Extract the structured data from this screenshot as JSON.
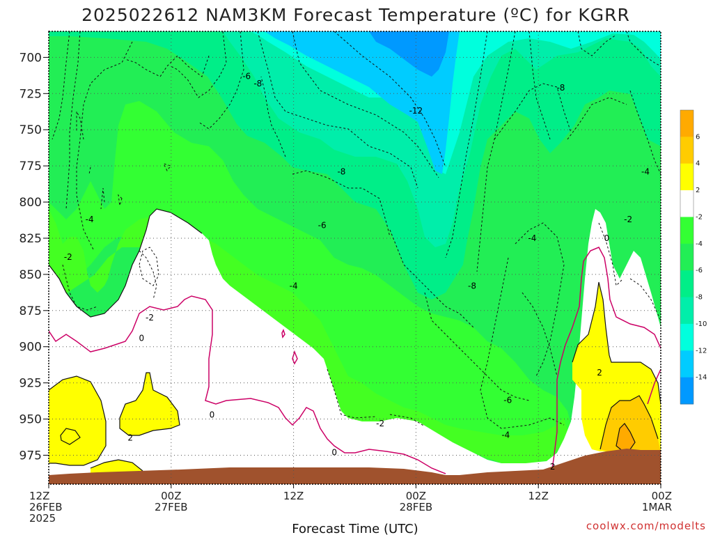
{
  "chart_data": {
    "type": "heatmap",
    "title": "2025022612 NAM3KM Forecast Temperature (ºC) for KGRR",
    "xlabel": "Forecast Time (UTC)",
    "ylabel": "",
    "x_ticks": [
      {
        "hour": 0,
        "lines": [
          "12Z",
          "26FEB",
          "2025"
        ]
      },
      {
        "hour": 12,
        "lines": [
          "00Z",
          "27FEB"
        ]
      },
      {
        "hour": 24,
        "lines": [
          "12Z"
        ]
      },
      {
        "hour": 36,
        "lines": [
          "00Z",
          "28FEB"
        ]
      },
      {
        "hour": 48,
        "lines": [
          "12Z"
        ]
      },
      {
        "hour": 60,
        "lines": [
          "00Z",
          "1MAR"
        ]
      }
    ],
    "xlim": [
      0,
      60
    ],
    "y_ticks": [
      700,
      725,
      750,
      775,
      800,
      825,
      850,
      875,
      900,
      925,
      950,
      975
    ],
    "ylim": [
      682,
      995
    ],
    "y_axis_inverted": true,
    "grid": "dotted",
    "colorbar": {
      "ticks": [
        6,
        4,
        2,
        -2,
        -4,
        -6,
        -8,
        -10,
        -12,
        -14
      ],
      "bands": [
        {
          "range": [
            6,
            8
          ],
          "color": "#ffaa00"
        },
        {
          "range": [
            4,
            6
          ],
          "color": "#ffcc00"
        },
        {
          "range": [
            2,
            4
          ],
          "color": "#ffff00"
        },
        {
          "range": [
            -2,
            2
          ],
          "color": "#ffffff"
        },
        {
          "range": [
            -4,
            -2
          ],
          "color": "#33ff33"
        },
        {
          "range": [
            -6,
            -4
          ],
          "color": "#22ee55"
        },
        {
          "range": [
            -8,
            -6
          ],
          "color": "#00ee88"
        },
        {
          "range": [
            -10,
            -8
          ],
          "color": "#00eeaa"
        },
        {
          "range": [
            -12,
            -10
          ],
          "color": "#00ffdd"
        },
        {
          "range": [
            -14,
            -12
          ],
          "color": "#00ccff"
        },
        {
          "range": [
            -16,
            -14
          ],
          "color": "#0099ff"
        }
      ]
    },
    "contour_labels": [
      {
        "text": "-6",
        "hour": 19.4,
        "pressure": 713
      },
      {
        "text": "-8",
        "hour": 20.5,
        "pressure": 718
      },
      {
        "text": "-12",
        "hour": 36.0,
        "pressure": 737
      },
      {
        "text": "-8",
        "hour": 50.2,
        "pressure": 721
      },
      {
        "text": "-8",
        "hour": 28.7,
        "pressure": 779
      },
      {
        "text": "-4",
        "hour": 58.5,
        "pressure": 779
      },
      {
        "text": "-4",
        "hour": 4.0,
        "pressure": 812
      },
      {
        "text": "-6",
        "hour": 26.8,
        "pressure": 816
      },
      {
        "text": "-4",
        "hour": 47.4,
        "pressure": 825
      },
      {
        "text": "0",
        "hour": 54.7,
        "pressure": 825
      },
      {
        "text": "-2",
        "hour": 56.8,
        "pressure": 812
      },
      {
        "text": "-2",
        "hour": 1.9,
        "pressure": 838
      },
      {
        "text": "-4",
        "hour": 24.0,
        "pressure": 858
      },
      {
        "text": "-8",
        "hour": 41.5,
        "pressure": 858
      },
      {
        "text": "-2",
        "hour": 9.9,
        "pressure": 880
      },
      {
        "text": "0",
        "hour": 9.1,
        "pressure": 894
      },
      {
        "text": "-6",
        "hour": 45.0,
        "pressure": 937
      },
      {
        "text": "2",
        "hour": 54.0,
        "pressure": 918
      },
      {
        "text": "0",
        "hour": 16.0,
        "pressure": 947
      },
      {
        "text": "-2",
        "hour": 32.5,
        "pressure": 953
      },
      {
        "text": "-4",
        "hour": 44.8,
        "pressure": 961
      },
      {
        "text": "2",
        "hour": 8.0,
        "pressure": 963
      },
      {
        "text": "0",
        "hour": 28.0,
        "pressure": 973
      },
      {
        "text": "2",
        "hour": 49.4,
        "pressure": 983
      }
    ],
    "credit": "coolwx.com/modelts"
  }
}
